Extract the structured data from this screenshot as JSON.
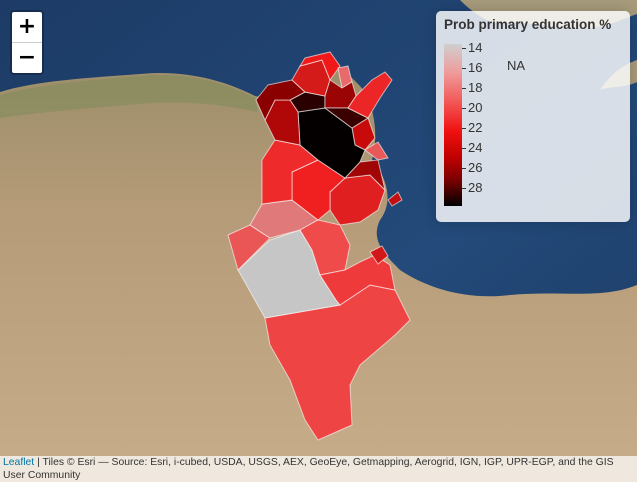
{
  "zoom": {
    "in_label": "+",
    "out_label": "−"
  },
  "legend": {
    "title": "Prob primary education %",
    "ticks": [
      "14",
      "16",
      "18",
      "20",
      "22",
      "24",
      "26",
      "28"
    ],
    "na_label": "NA"
  },
  "attribution": {
    "link_text": "Leaflet",
    "text": " | Tiles © Esri — Source: Esri, i-cubed, USDA, USGS, AEX, GeoEye, Getmapping, Aerogrid, IGN, IGP, UPR-EGP, and the GIS User Community"
  },
  "colors": {
    "sea": "#1f3f6e",
    "land": "#b79c7c",
    "na": "#c8c8c8",
    "scale_low": "#cfcfcf",
    "scale_mid": "#f01010",
    "scale_high": "#000000"
  }
}
